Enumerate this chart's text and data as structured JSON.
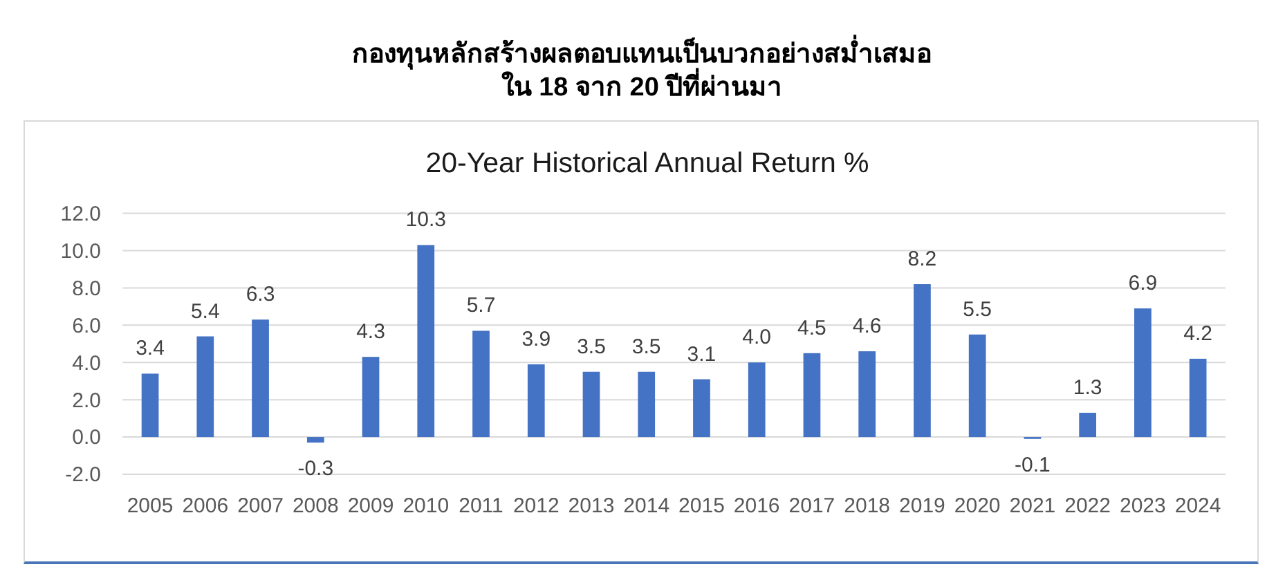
{
  "chart_data": {
    "type": "bar",
    "title": "กองทุนหลักสร้างผลตอบแทนเป็นบวกอย่างสม่ำเสมอ\nใน 18 จาก 20 ปีที่ผ่านมา",
    "subtitle": "20-Year Historical Annual Return %",
    "categories": [
      "2005",
      "2006",
      "2007",
      "2008",
      "2009",
      "2010",
      "2011",
      "2012",
      "2013",
      "2014",
      "2015",
      "2016",
      "2017",
      "2018",
      "2019",
      "2020",
      "2021",
      "2022",
      "2023",
      "2024"
    ],
    "values": [
      3.4,
      5.4,
      6.3,
      -0.3,
      4.3,
      10.3,
      5.7,
      3.9,
      3.5,
      3.5,
      3.1,
      4.0,
      4.5,
      4.6,
      8.2,
      5.5,
      -0.1,
      1.3,
      6.9,
      4.2
    ],
    "value_labels": [
      "3.4",
      "5.4",
      "6.3",
      "-0.3",
      "4.3",
      "10.3",
      "5.7",
      "3.9",
      "3.5",
      "3.5",
      "3.1",
      "4.0",
      "4.5",
      "4.6",
      "8.2",
      "5.5",
      "-0.1",
      "1.3",
      "6.9",
      "4.2"
    ],
    "color": "#4472c4",
    "ylim": [
      -2,
      12
    ],
    "yticks": [
      {
        "value": -2,
        "label": "-2.0"
      },
      {
        "value": 0,
        "label": "0.0"
      },
      {
        "value": 2,
        "label": "2.0"
      },
      {
        "value": 4,
        "label": "4.0"
      },
      {
        "value": 6,
        "label": "6.0"
      },
      {
        "value": 8,
        "label": "8.0"
      },
      {
        "value": 10,
        "label": "10.0"
      },
      {
        "value": 12,
        "label": "12.0"
      }
    ],
    "grid": "y"
  }
}
